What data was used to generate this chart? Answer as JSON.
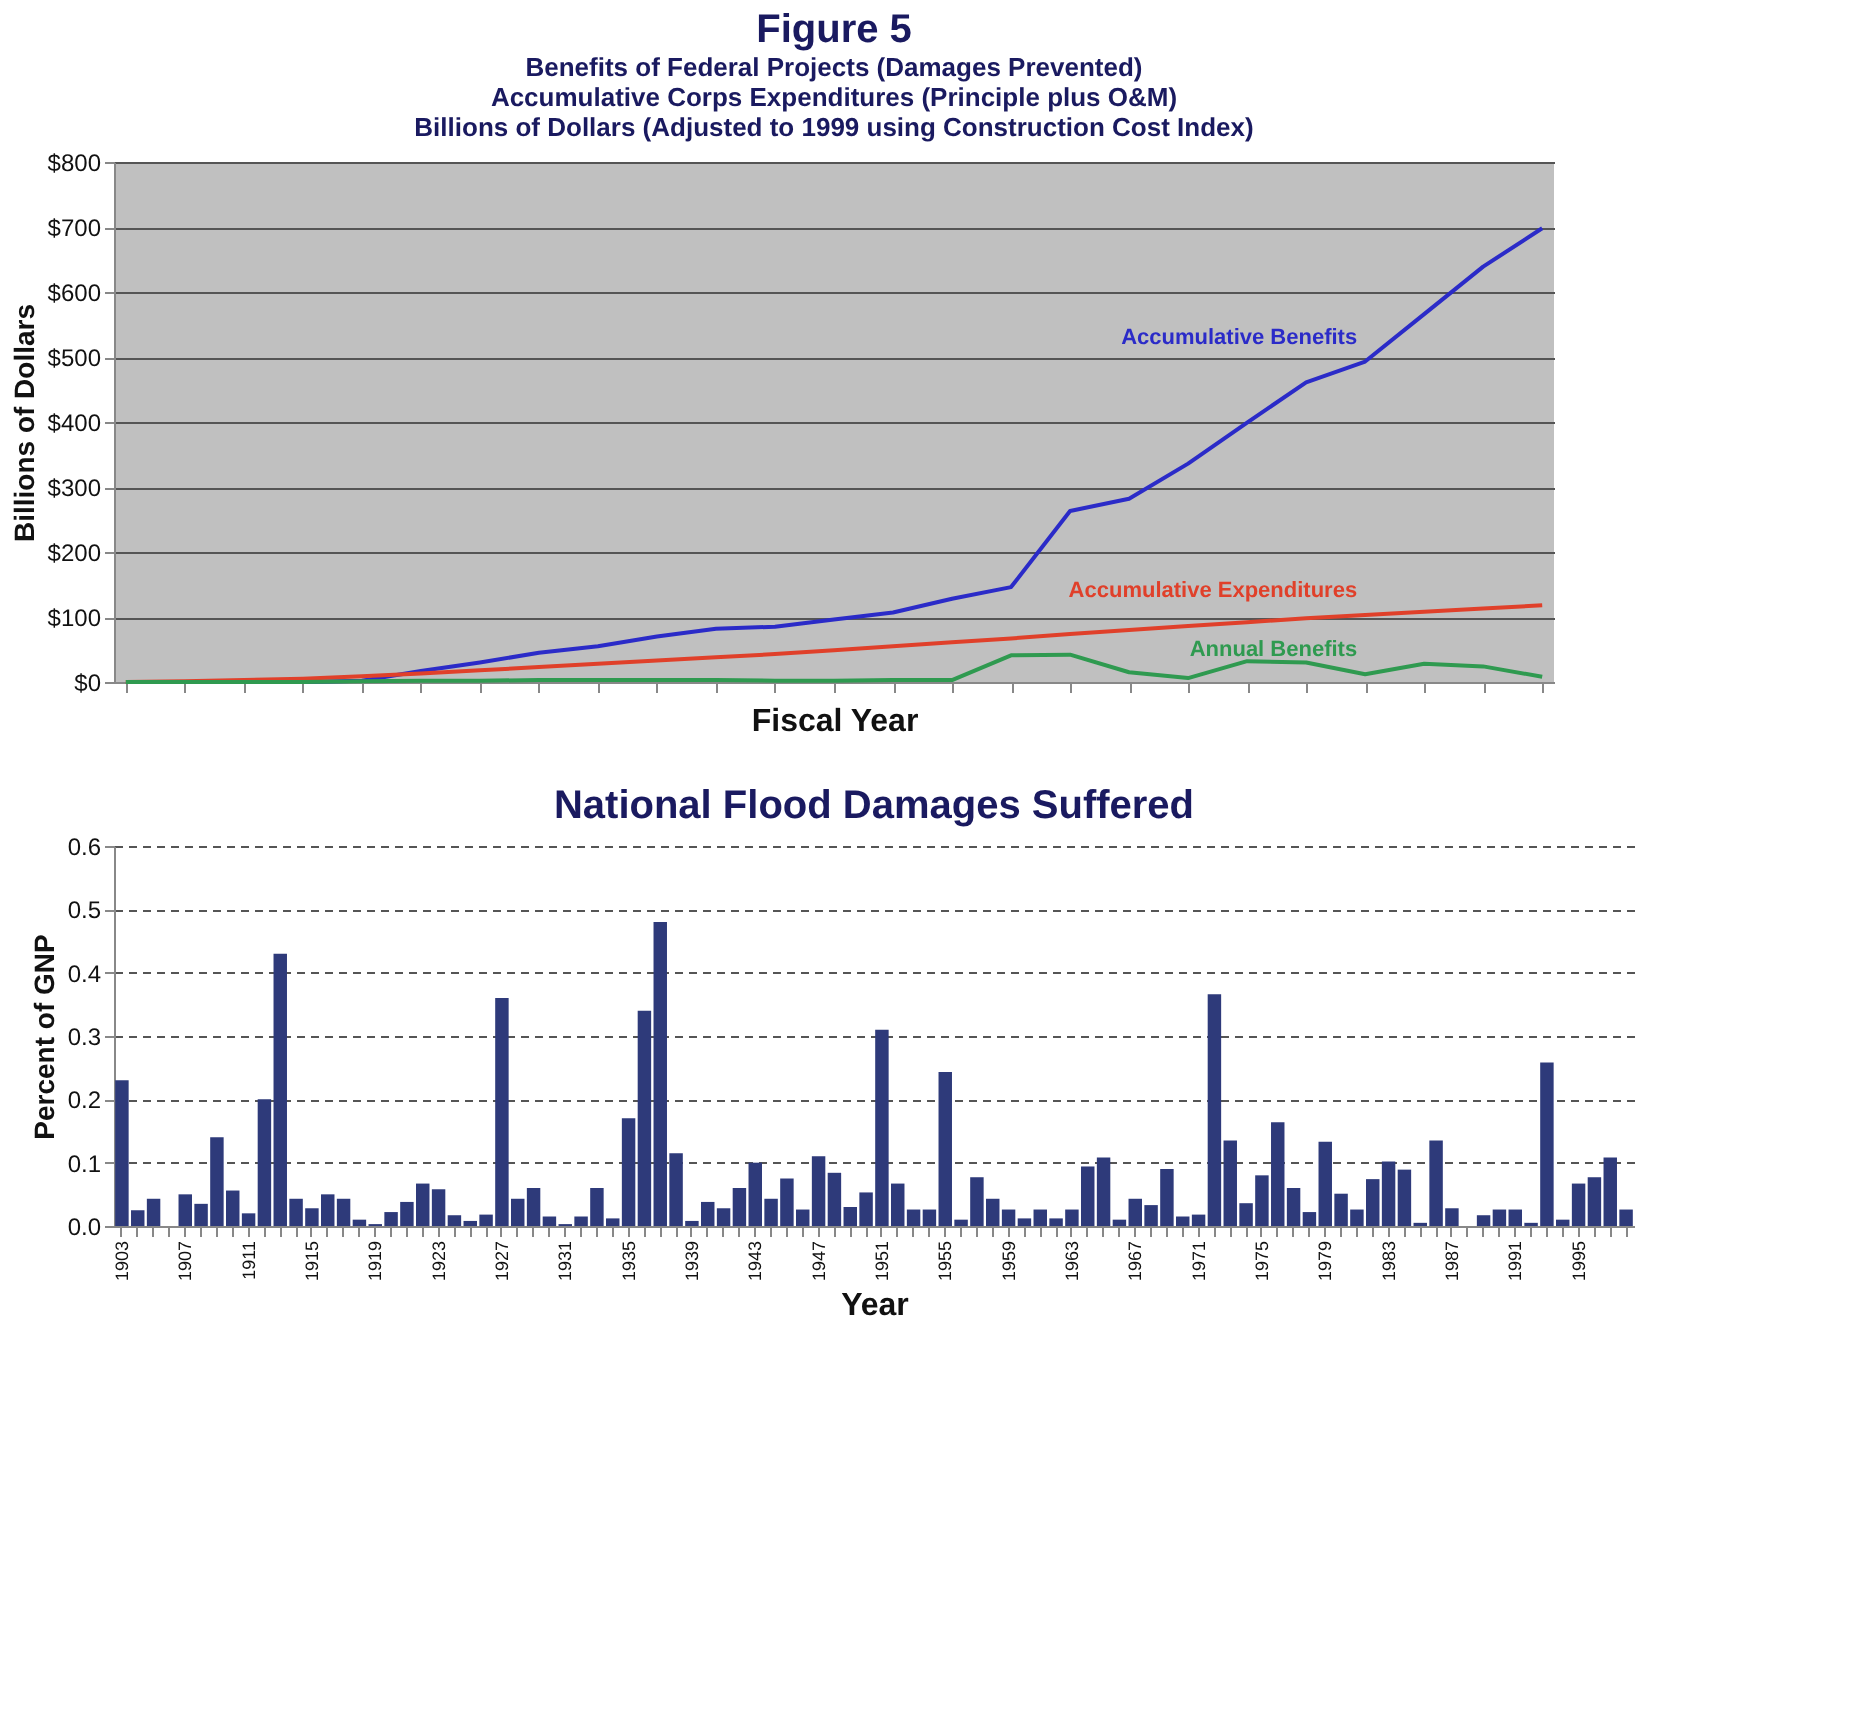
{
  "chart_data": [
    {
      "type": "line",
      "title": "Figure 5",
      "subtitle": "Benefits of Federal Projects (Damages Prevented)\nAccumulative Corps Expenditures (Principle plus O&M)",
      "annotations": [
        "Billions of Dollars (Adjusted to 1999 using Construction Cost Index)"
      ],
      "xlabel": "Fiscal Year",
      "ylabel": "Billions of Dollars",
      "categories": [
        null,
        null,
        null,
        null,
        null,
        null,
        null,
        null,
        null,
        null,
        null,
        null,
        null,
        null,
        null,
        null,
        null,
        null,
        null,
        null,
        null,
        null,
        null,
        null,
        null
      ],
      "series": [
        {
          "name": "Accumulative Benefits",
          "color": "#2b2bc8",
          "values": [
            null,
            null,
            null,
            0,
            2,
            17,
            30,
            45,
            55,
            70,
            82,
            85,
            96,
            107,
            128,
            146,
            263,
            282,
            336,
            399,
            461,
            493,
            566,
            639,
            698
          ]
        },
        {
          "name": "Accumulative Expenditures",
          "color": "#e0402a",
          "values": [
            0,
            1,
            3,
            5,
            9,
            13,
            18,
            23,
            28,
            33,
            38,
            43,
            49,
            55,
            61,
            67,
            74,
            80,
            86,
            92,
            98,
            103,
            108,
            113,
            118
          ]
        },
        {
          "name": "Annual Benefits",
          "color": "#2f9a50",
          "values": [
            0,
            0,
            0,
            0,
            1,
            2,
            2,
            3,
            3,
            3,
            3,
            2,
            2,
            3,
            3,
            41,
            42,
            15,
            6,
            32,
            30,
            12,
            28,
            24,
            8
          ]
        }
      ],
      "ylim": [
        0,
        800
      ],
      "yticks": [
        {
          "value": 0,
          "label": "$0"
        },
        {
          "value": 100,
          "label": "$100"
        },
        {
          "value": 200,
          "label": "$200"
        },
        {
          "value": 300,
          "label": "$300"
        },
        {
          "value": 400,
          "label": "$400"
        },
        {
          "value": 500,
          "label": "$500"
        },
        {
          "value": 600,
          "label": "$600"
        },
        {
          "value": 700,
          "label": "$700"
        },
        {
          "value": 800,
          "label": "$800"
        }
      ],
      "grid": "y",
      "legend": false
    },
    {
      "type": "bar",
      "title": "National Flood Damages Suffered",
      "xlabel": "Year",
      "ylabel": "Percent of GNP",
      "color": "#2e3a7a",
      "categories": [
        "1903",
        null,
        null,
        null,
        "1907",
        null,
        null,
        null,
        "1911",
        null,
        null,
        null,
        "1915",
        null,
        null,
        null,
        "1919",
        null,
        null,
        null,
        "1923",
        null,
        null,
        null,
        "1927",
        null,
        null,
        null,
        "1931",
        null,
        null,
        null,
        "1935",
        null,
        null,
        null,
        "1939",
        null,
        null,
        null,
        "1943",
        null,
        null,
        null,
        "1947",
        null,
        null,
        null,
        "1951",
        null,
        null,
        null,
        "1955",
        null,
        null,
        null,
        "1959",
        null,
        null,
        null,
        "1963",
        null,
        null,
        null,
        "1967",
        null,
        null,
        null,
        "1971",
        null,
        null,
        null,
        "1975",
        null,
        null,
        null,
        "1979",
        null,
        null,
        null,
        "1983",
        null,
        null,
        null,
        "1987",
        null,
        null,
        null,
        "1991",
        null,
        null,
        null,
        "1995",
        null,
        null,
        null
      ],
      "values": [
        0.23,
        0.025,
        0.043,
        0,
        0.05,
        0.035,
        0.14,
        0.056,
        0.02,
        0.2,
        0.43,
        0.043,
        0.028,
        0.05,
        0.043,
        0.01,
        0.003,
        0.022,
        0.038,
        0.067,
        0.058,
        0.017,
        0.008,
        0.018,
        0.36,
        0.043,
        0.06,
        0.015,
        0.003,
        0.015,
        0.06,
        0.012,
        0.17,
        0.34,
        0.48,
        0.115,
        0.008,
        0.038,
        0.028,
        0.06,
        0.1,
        0.043,
        0.075,
        0.026,
        0.11,
        0.084,
        0.03,
        0.053,
        0.31,
        0.067,
        0.026,
        0.026,
        0.243,
        0.01,
        0.077,
        0.043,
        0.026,
        0.012,
        0.026,
        0.012,
        0.026,
        0.094,
        0.108,
        0.01,
        0.043,
        0.033,
        0.09,
        0.015,
        0.018,
        0.366,
        0.135,
        0.036,
        0.08,
        0.164,
        0.06,
        0.022,
        0.133,
        0.051,
        0.026,
        0.074,
        0.102,
        0.089,
        0.005,
        0.135,
        0.028,
        0,
        0.017,
        0.026,
        0.026,
        0.005,
        0.258,
        0.01,
        0.067,
        0.077,
        0.108,
        0.026
      ],
      "ylim": [
        0,
        0.6
      ],
      "yticks": [
        {
          "value": 0,
          "label": "0.0"
        },
        {
          "value": 0.1,
          "label": "0.1"
        },
        {
          "value": 0.2,
          "label": "0.2"
        },
        {
          "value": 0.3,
          "label": "0.3"
        },
        {
          "value": 0.4,
          "label": "0.4"
        },
        {
          "value": 0.5,
          "label": "0.5"
        },
        {
          "value": 0.6,
          "label": "0.6"
        }
      ],
      "grid": "y",
      "legend": false
    }
  ]
}
